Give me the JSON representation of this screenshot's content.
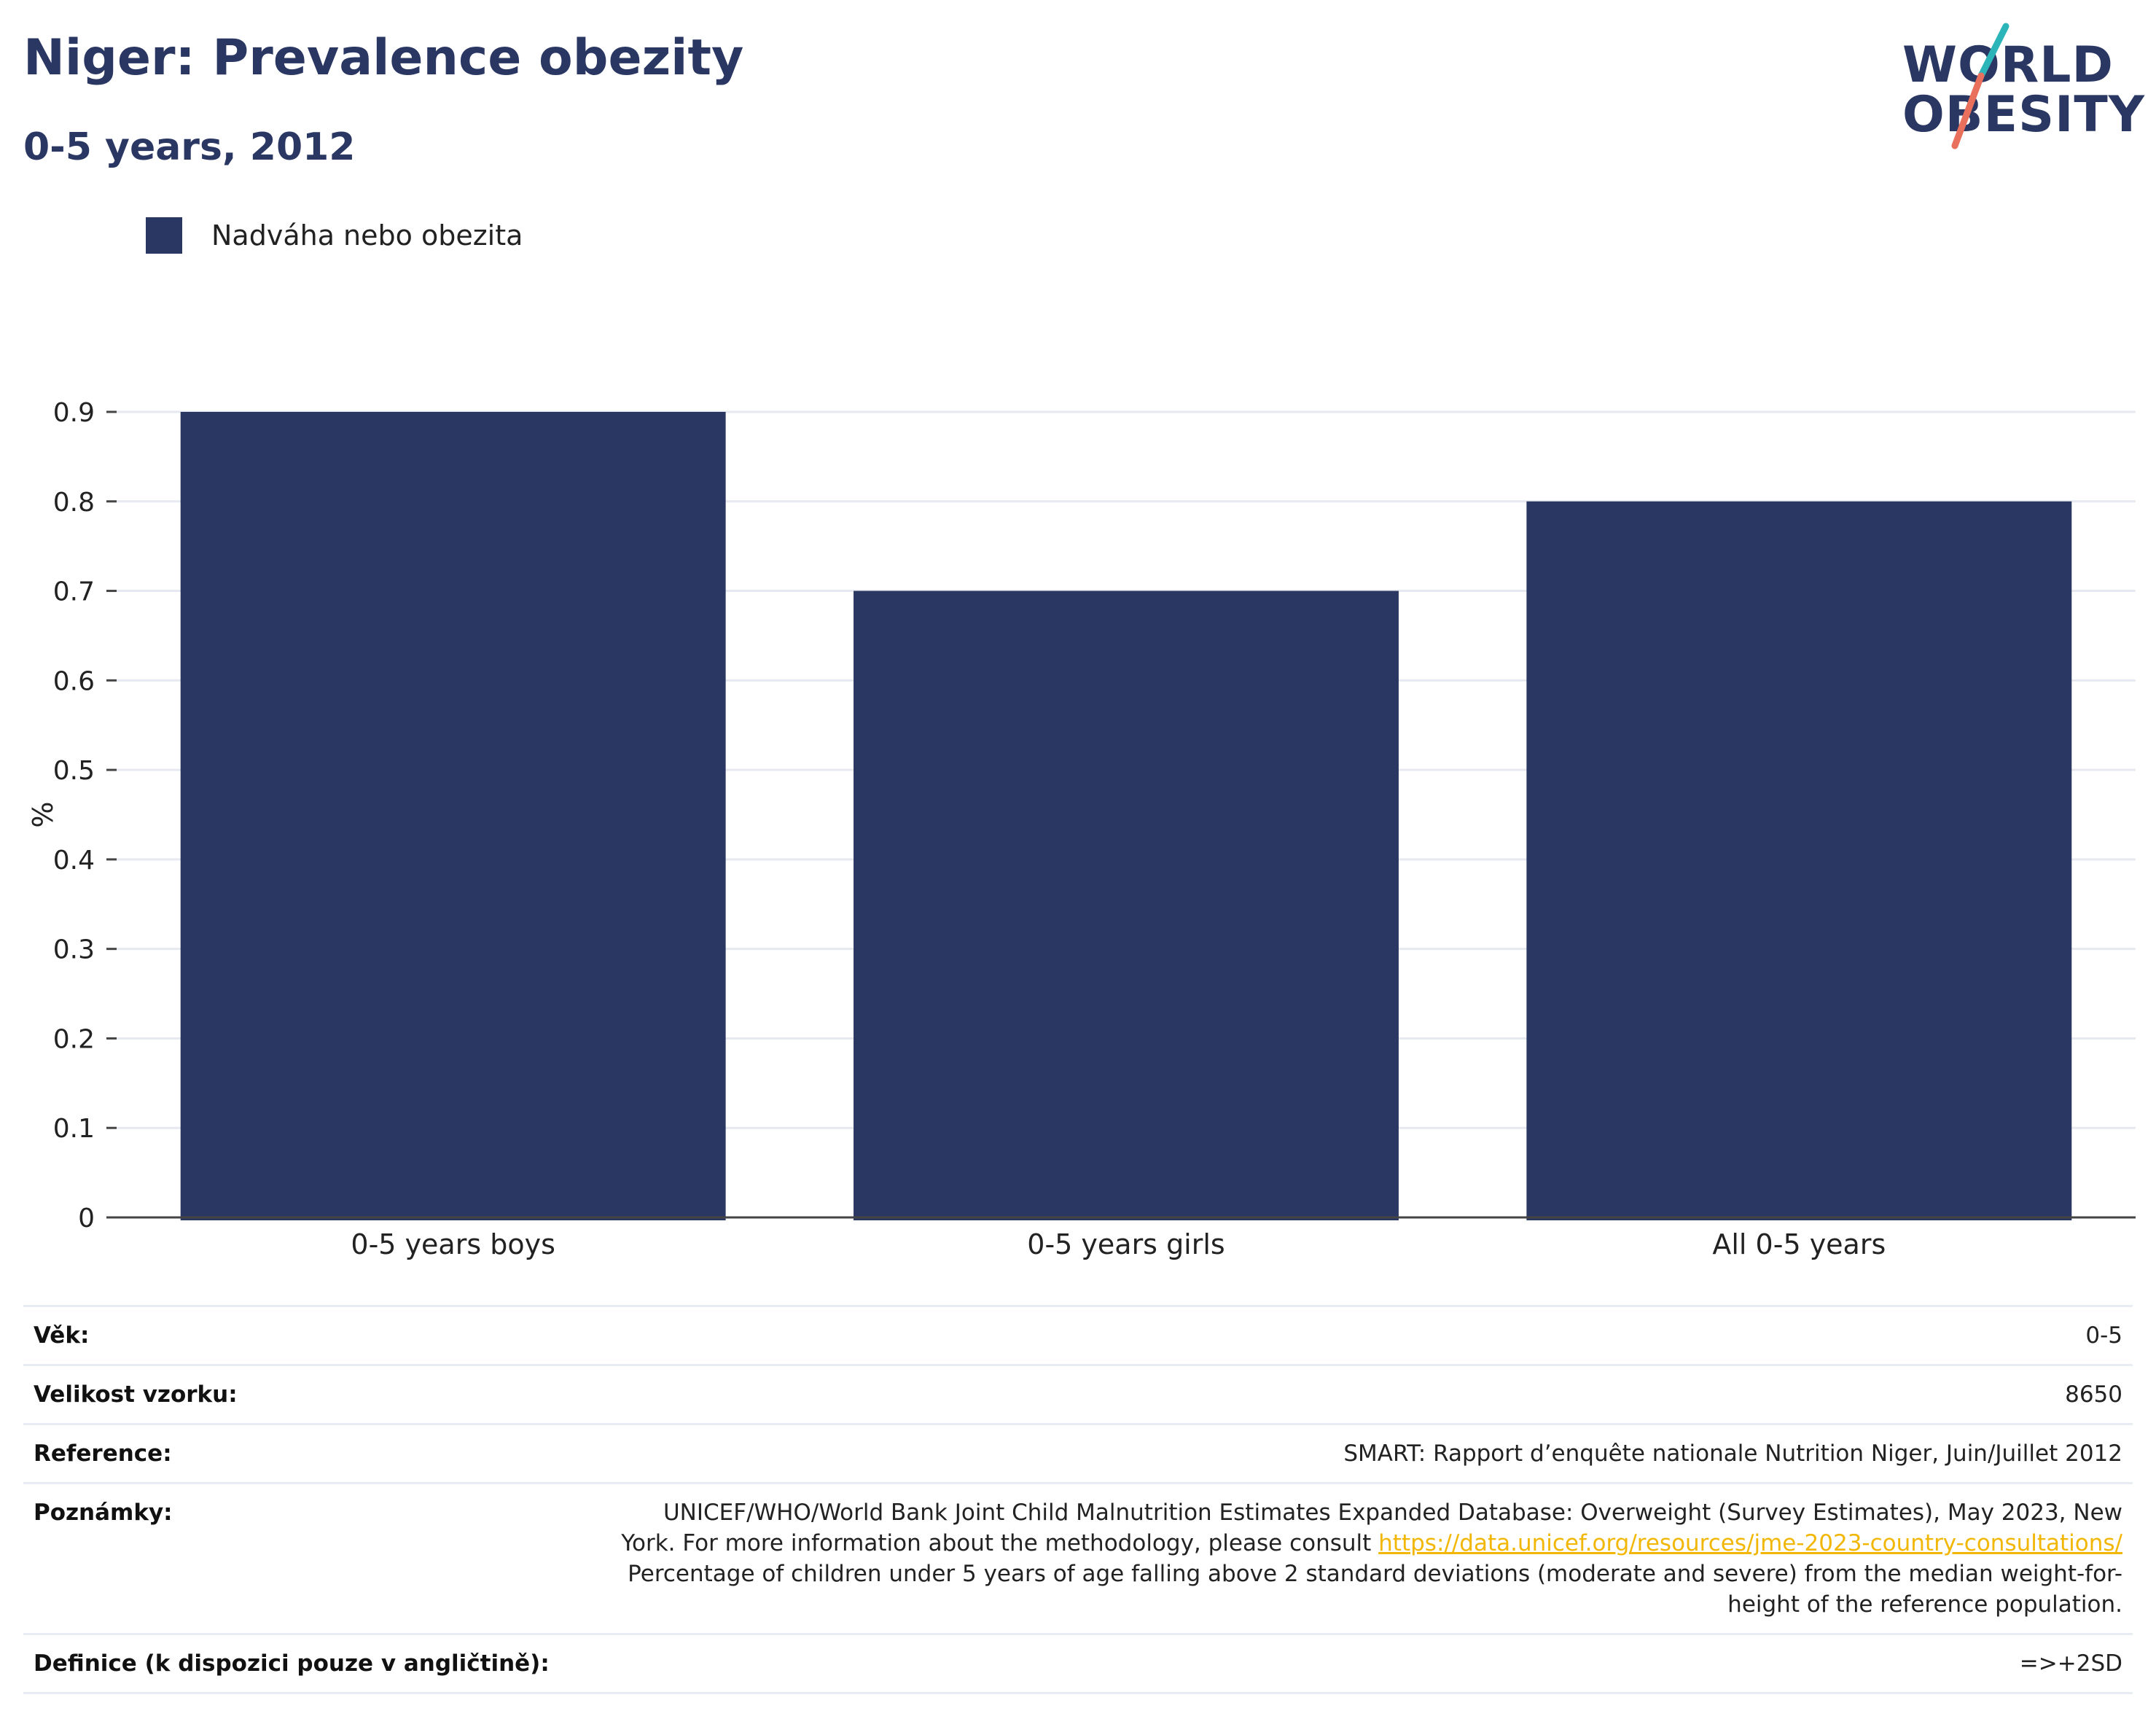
{
  "header": {
    "title": "Niger: Prevalence obezity",
    "subtitle": "0-5 years, 2012"
  },
  "logo": {
    "line1": "WORLD",
    "line2": "OBESITY",
    "colors": {
      "text": "#2b3763",
      "slash_top": "#2bb5b8",
      "slash_bottom": "#e8705c"
    }
  },
  "legend": {
    "items": [
      {
        "label": "Nadváha nebo obezita",
        "color": "#2b3763"
      }
    ]
  },
  "chart_data": {
    "type": "bar",
    "categories": [
      "0-5 years boys",
      "0-5 years girls",
      "All 0-5 years"
    ],
    "series": [
      {
        "name": "Nadváha nebo obezita",
        "values": [
          0.9,
          0.7,
          0.8
        ],
        "color": "#2b3763"
      }
    ],
    "ylabel": "%",
    "ylim": [
      0,
      0.9
    ],
    "yticks": [
      "0",
      "0.1",
      "0.2",
      "0.3",
      "0.4",
      "0.5",
      "0.6",
      "0.7",
      "0.8",
      "0.9"
    ],
    "grid": true
  },
  "info": {
    "age_label": "Věk:",
    "age_value": "0-5",
    "sample_label": "Velikost vzorku:",
    "sample_value": "8650",
    "reference_label": "Reference:",
    "reference_value": "SMART: Rapport d’enquête nationale Nutrition Niger, Juin/Juillet 2012",
    "notes_label": "Poznámky:",
    "notes_text_before": "UNICEF/WHO/World Bank Joint Child Malnutrition Estimates Expanded Database: Overweight (Survey Estimates), May 2023, New York. For more information about the methodology, please consult ",
    "notes_link": "https://data.unicef.org/resources/jme-2023-country-consultations/",
    "notes_text_after": " Percentage of children under 5 years of age falling above 2 standard deviations (moderate and severe) from the median weight-for-height of the reference population.",
    "definition_label": "Definice (k dispozici pouze v angličtině):",
    "definition_value": "=>+2SD"
  }
}
